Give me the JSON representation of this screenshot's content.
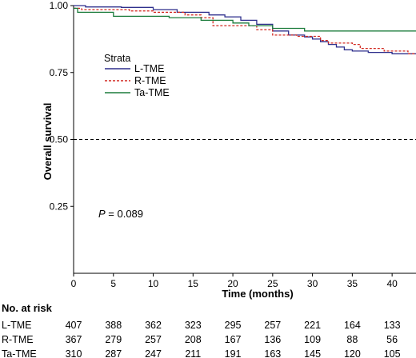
{
  "chart_data": {
    "type": "line",
    "subtype": "kaplan-meier",
    "title": "",
    "xlabel": "Time (months)",
    "ylabel": "Overall survival",
    "xlim": [
      0,
      43
    ],
    "ylim": [
      0,
      1
    ],
    "x_ticks": [
      0,
      5,
      10,
      15,
      20,
      25,
      30,
      35,
      40
    ],
    "y_ticks": [
      0.25,
      0.5,
      0.75,
      1.0
    ],
    "y_tick_labels": [
      "0.25",
      "0.50",
      "0.75",
      "1.00"
    ],
    "reference_line": {
      "y": 0.5,
      "style": "dashed"
    },
    "legend": {
      "title": "Strata",
      "placement": "upper-left"
    },
    "annotation": {
      "p_label": "P",
      "p_value_text": " = 0.089",
      "x": 2,
      "y": 0.2
    },
    "series": [
      {
        "name": "L-TME",
        "color": "#2e2f8c",
        "style": "solid",
        "points": [
          [
            0,
            1.0
          ],
          [
            1.5,
            0.995
          ],
          [
            6,
            0.993
          ],
          [
            10,
            0.985
          ],
          [
            13,
            0.975
          ],
          [
            17,
            0.965
          ],
          [
            19,
            0.958
          ],
          [
            21,
            0.945
          ],
          [
            23,
            0.93
          ],
          [
            25,
            0.905
          ],
          [
            27,
            0.89
          ],
          [
            29,
            0.883
          ],
          [
            30,
            0.875
          ],
          [
            31,
            0.865
          ],
          [
            32,
            0.855
          ],
          [
            33,
            0.845
          ],
          [
            34,
            0.835
          ],
          [
            35,
            0.83
          ],
          [
            37,
            0.825
          ],
          [
            40,
            0.82
          ],
          [
            43,
            0.82
          ]
        ]
      },
      {
        "name": "R-TME",
        "color": "#d22a22",
        "style": "dashed",
        "points": [
          [
            0,
            0.99
          ],
          [
            1,
            0.985
          ],
          [
            4,
            0.985
          ],
          [
            7,
            0.98
          ],
          [
            10,
            0.975
          ],
          [
            14,
            0.965
          ],
          [
            16,
            0.955
          ],
          [
            17.5,
            0.925
          ],
          [
            21,
            0.925
          ],
          [
            23,
            0.91
          ],
          [
            25,
            0.89
          ],
          [
            28,
            0.885
          ],
          [
            31,
            0.87
          ],
          [
            32,
            0.86
          ],
          [
            35,
            0.855
          ],
          [
            36,
            0.84
          ],
          [
            37.5,
            0.84
          ],
          [
            39,
            0.83
          ],
          [
            42,
            0.82
          ],
          [
            43,
            0.82
          ]
        ]
      },
      {
        "name": "Ta-TME",
        "color": "#1c7c3c",
        "style": "solid",
        "points": [
          [
            0,
            0.99
          ],
          [
            0.5,
            0.975
          ],
          [
            3,
            0.975
          ],
          [
            5,
            0.96
          ],
          [
            12,
            0.955
          ],
          [
            16,
            0.945
          ],
          [
            20,
            0.935
          ],
          [
            22,
            0.925
          ],
          [
            25,
            0.915
          ],
          [
            29,
            0.905
          ],
          [
            31,
            0.905
          ],
          [
            34,
            0.905
          ],
          [
            43,
            0.905
          ]
        ]
      }
    ],
    "risk_table": {
      "title": "No. at risk",
      "times": [
        0,
        5,
        10,
        15,
        20,
        25,
        30,
        35,
        40
      ],
      "rows": [
        {
          "label": "L-TME",
          "values": [
            "407",
            "388",
            "362",
            "323",
            "295",
            "257",
            "221",
            "164",
            "133"
          ]
        },
        {
          "label": "R-TME",
          "values": [
            "367",
            "279",
            "257",
            "208",
            "167",
            "136",
            "109",
            "88",
            "56"
          ]
        },
        {
          "label": "Ta-TME",
          "values": [
            "310",
            "287",
            "247",
            "211",
            "191",
            "163",
            "145",
            "120",
            "105"
          ]
        }
      ]
    }
  }
}
